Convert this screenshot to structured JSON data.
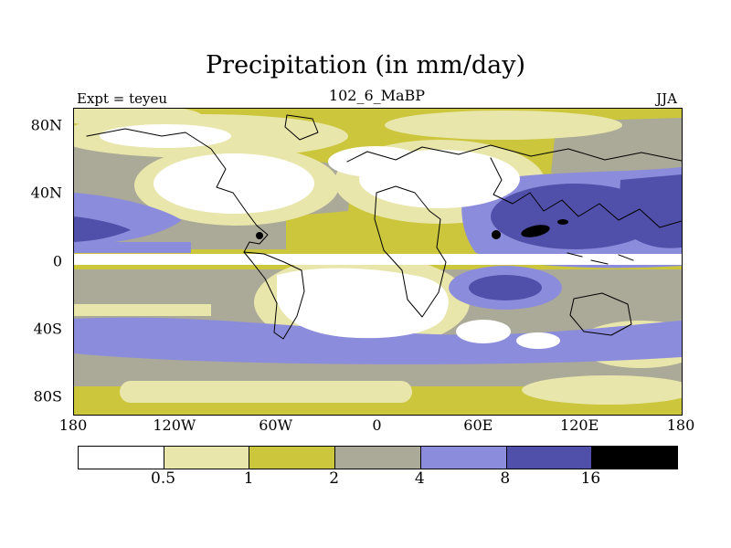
{
  "chart_data": {
    "type": "heatmap",
    "title": "Precipitation (in mm/day)",
    "subtitle": "102_6_MaBP",
    "experiment": "Expt = teyeu",
    "season": "JJA",
    "variable": "Precipitation",
    "units": "mm/day",
    "lat_ticks": [
      "80N",
      "40N",
      "0",
      "40S",
      "80S"
    ],
    "lon_ticks": [
      "180",
      "120W",
      "60W",
      "0",
      "60E",
      "120E",
      "180"
    ],
    "lat_range": [
      -90,
      90
    ],
    "lon_range": [
      -180,
      180
    ],
    "colorbar": {
      "levels": [
        "0.5",
        "1",
        "2",
        "4",
        "8",
        "16"
      ],
      "colors": [
        "#ffffff",
        "#e9e6ab",
        "#cbc63c",
        "#aba997",
        "#8c8cdc",
        "#5050aa",
        "#000000"
      ],
      "bins": [
        "< 0.5",
        "0.5 - 1",
        "1 - 2",
        "2 - 4",
        "4 - 8",
        "8 - 16",
        "> 16"
      ]
    },
    "notable_features": [
      "Dry (< 0.5 mm/day) white band along the equator",
      "Dry subtropical regions over the eastern Pacific, North Africa / Middle East and the South Atlantic / South America",
      "Heavy rain (8 - 16+ mm/day, dark blue / black) over the Indian Ocean and west Pacific monsoon region",
      "4 - 8 mm/day (blue) storm-track band across Southern Hemisphere mid-latitudes",
      "Grey 2 - 4 mm/day belts in both hemispheres' mid-latitudes"
    ]
  }
}
